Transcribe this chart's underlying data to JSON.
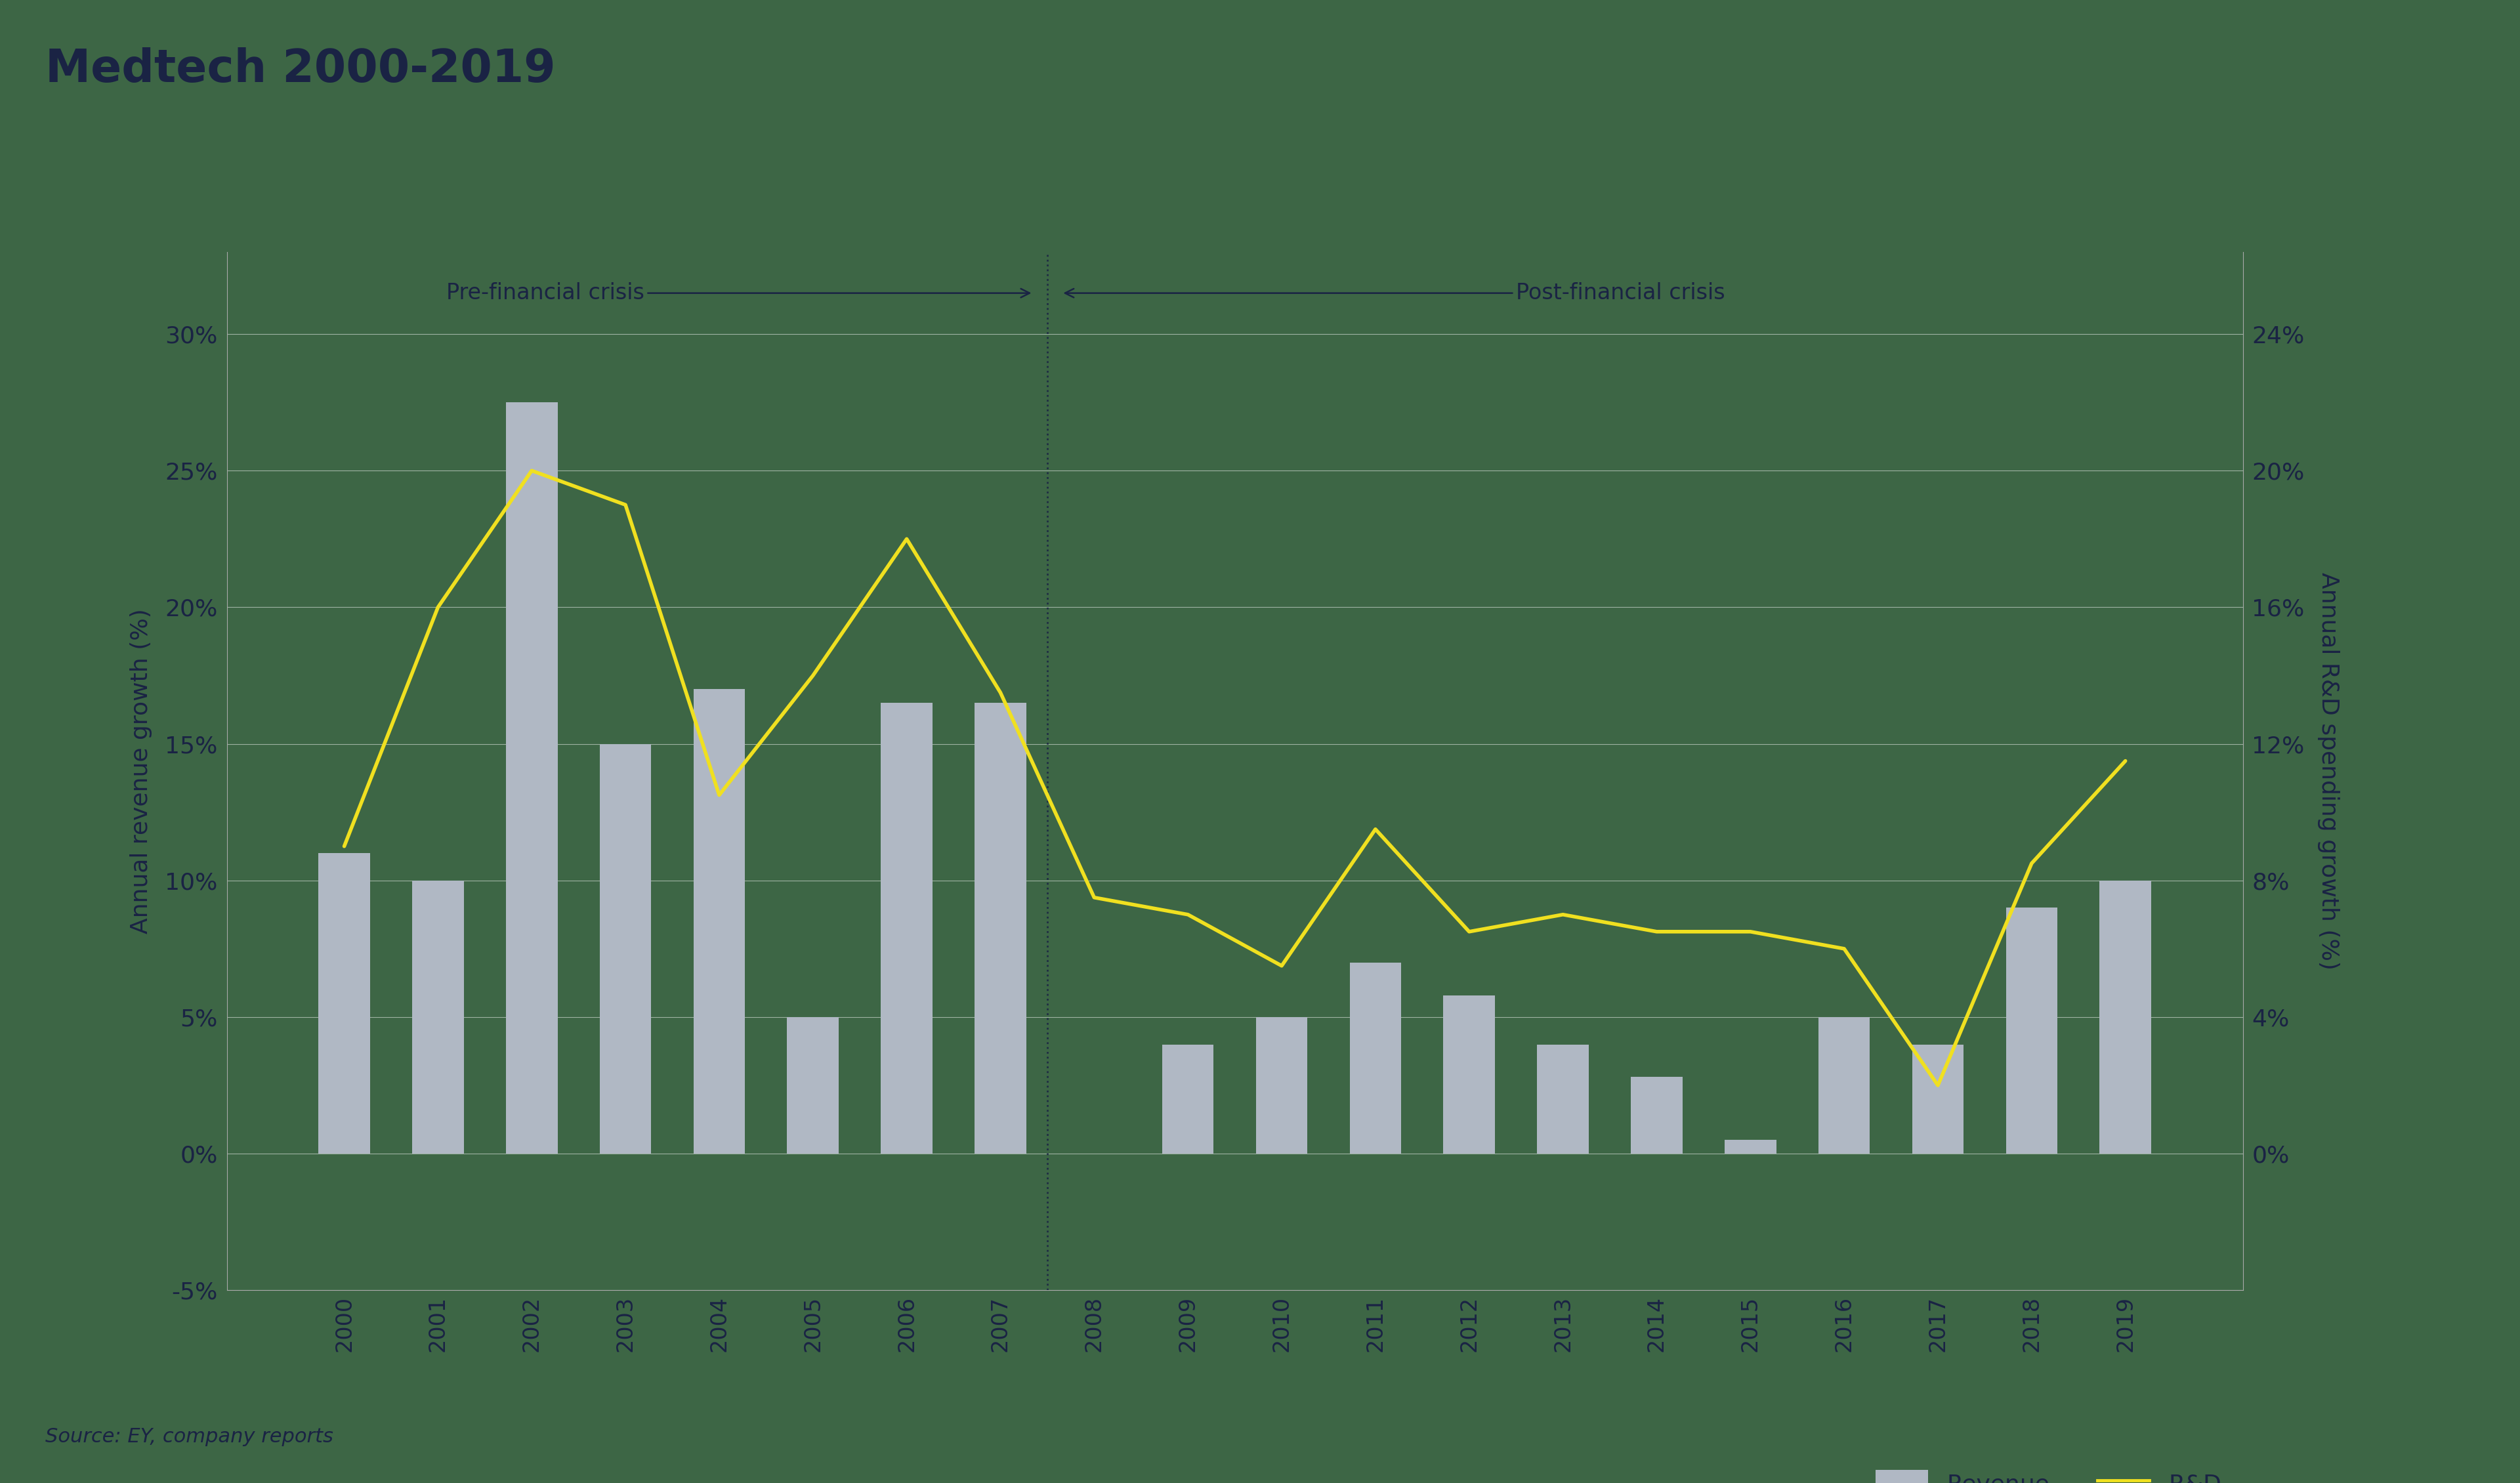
{
  "years": [
    2000,
    2001,
    2002,
    2003,
    2004,
    2005,
    2006,
    2007,
    2008,
    2009,
    2010,
    2011,
    2012,
    2013,
    2014,
    2015,
    2016,
    2017,
    2018,
    2019
  ],
  "revenue": [
    11,
    10,
    27.5,
    15,
    17,
    5,
    16.5,
    16.5,
    0,
    4,
    5,
    7,
    5.8,
    4,
    2.8,
    0.5,
    5,
    4,
    9,
    10
  ],
  "rnd": [
    9,
    16,
    20,
    19,
    10.5,
    14,
    18,
    13.5,
    7.5,
    7,
    5.5,
    9.5,
    6.5,
    7,
    6.5,
    6.5,
    6,
    2,
    8.5,
    11.5
  ],
  "title": "Medtech 2000-2019",
  "ylabel_left": "Annual revenue growth (%)",
  "ylabel_right": "Annual R&D spending growth (%)",
  "ylim_left": [
    -5,
    33
  ],
  "ylim_right": [
    -4,
    26.4
  ],
  "yticks_left": [
    -5,
    0,
    5,
    10,
    15,
    20,
    25,
    30
  ],
  "yticks_right": [
    0,
    4,
    8,
    12,
    16,
    20,
    24
  ],
  "background_color": "#3d6645",
  "title_bg_color": "#adb2b8",
  "title_text_color": "#1a2344",
  "bar_color": "#b0b8c4",
  "line_color": "#f0e020",
  "grid_color": "#ffffff",
  "axis_label_color": "#1a2344",
  "tick_label_color": "#1a2344",
  "source_text": "Source: EY, company reports",
  "pre_crisis_label": "Pre-financial crisis",
  "post_crisis_label": "Post-financial crisis",
  "legend_revenue": "Revenue",
  "legend_rnd": "R&D"
}
